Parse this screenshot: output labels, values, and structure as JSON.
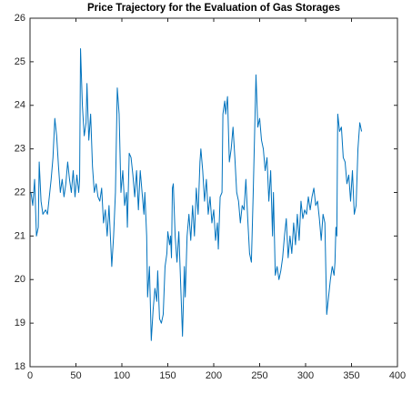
{
  "chart_data": {
    "type": "line",
    "title": "Price Trajectory for the Evaluation of Gas Storages",
    "x": [
      1,
      3,
      5,
      7,
      9,
      10,
      12,
      14,
      17,
      19,
      21,
      23,
      25,
      27,
      29,
      31,
      33,
      35,
      37,
      39,
      41,
      43,
      45,
      47,
      49,
      51,
      53,
      54,
      55,
      57,
      59,
      61,
      62,
      64,
      66,
      68,
      70,
      72,
      74,
      76,
      78,
      80,
      82,
      84,
      86,
      89,
      91,
      93,
      95,
      97,
      99,
      101,
      103,
      105,
      106,
      108,
      110,
      112,
      114,
      116,
      118,
      120,
      122,
      124,
      125,
      127,
      128,
      130,
      132,
      134,
      136,
      138,
      139,
      141,
      143,
      145,
      147,
      149,
      150,
      152,
      153,
      154,
      155,
      156,
      158,
      160,
      162,
      166,
      168,
      169,
      171,
      173,
      175,
      177,
      179,
      181,
      183,
      185,
      186,
      188,
      190,
      192,
      194,
      196,
      198,
      200,
      202,
      204,
      205,
      207,
      209,
      210,
      212,
      213,
      215,
      217,
      219,
      221,
      223,
      225,
      227,
      229,
      231,
      233,
      235,
      237,
      239,
      241,
      243,
      246,
      248,
      250,
      252,
      254,
      256,
      258,
      260,
      262,
      264,
      265,
      267,
      269,
      271,
      273,
      275,
      277,
      279,
      281,
      283,
      285,
      287,
      289,
      291,
      293,
      295,
      297,
      299,
      301,
      303,
      305,
      307,
      309,
      311,
      313,
      315,
      317,
      319,
      321,
      323,
      325,
      327,
      329,
      331,
      332,
      333,
      334,
      335,
      337,
      339,
      341,
      343,
      345,
      347,
      349,
      351,
      353,
      355,
      357,
      359,
      361
    ],
    "values": [
      22.0,
      21.7,
      22.3,
      21.0,
      21.2,
      22.7,
      21.8,
      21.5,
      21.6,
      21.5,
      21.9,
      22.3,
      22.8,
      23.7,
      23.3,
      22.6,
      22.0,
      22.3,
      21.9,
      22.2,
      22.7,
      22.3,
      22.0,
      22.5,
      21.9,
      22.4,
      22.0,
      22.3,
      25.3,
      24.0,
      23.3,
      23.6,
      24.5,
      23.2,
      23.8,
      22.6,
      22.0,
      22.2,
      21.9,
      21.8,
      22.1,
      21.3,
      21.6,
      21.0,
      21.7,
      20.3,
      21.0,
      22.0,
      24.4,
      23.8,
      22.0,
      22.5,
      21.7,
      22.0,
      21.2,
      22.9,
      22.8,
      22.4,
      21.9,
      22.5,
      21.6,
      22.5,
      22.0,
      21.5,
      22.0,
      21.0,
      19.6,
      20.3,
      18.6,
      19.3,
      19.8,
      19.5,
      20.2,
      19.1,
      19.0,
      19.2,
      20.3,
      20.6,
      21.1,
      20.8,
      21.0,
      20.5,
      22.1,
      22.2,
      21.0,
      20.4,
      21.1,
      18.7,
      20.3,
      19.6,
      21.0,
      21.5,
      20.9,
      21.7,
      21.0,
      22.1,
      21.5,
      22.7,
      23.0,
      22.5,
      21.8,
      22.3,
      21.5,
      21.9,
      21.3,
      21.6,
      20.9,
      21.3,
      20.7,
      21.9,
      22.0,
      23.8,
      24.1,
      23.8,
      24.2,
      22.7,
      23.0,
      23.5,
      22.8,
      22.0,
      21.8,
      21.3,
      21.7,
      21.6,
      22.3,
      21.4,
      20.6,
      20.4,
      22.0,
      24.7,
      23.5,
      23.7,
      23.2,
      23.0,
      22.5,
      22.8,
      21.8,
      22.5,
      21.0,
      22.0,
      20.1,
      20.3,
      20.0,
      20.2,
      20.5,
      21.0,
      21.4,
      20.5,
      21.0,
      20.6,
      21.3,
      20.8,
      21.5,
      20.9,
      21.8,
      21.4,
      21.6,
      21.5,
      21.9,
      21.6,
      21.9,
      22.1,
      21.7,
      21.8,
      21.4,
      20.9,
      21.5,
      21.3,
      19.2,
      19.6,
      20.0,
      20.3,
      20.1,
      20.4,
      21.2,
      21.0,
      23.8,
      23.4,
      23.5,
      22.8,
      22.7,
      22.2,
      22.4,
      21.8,
      22.5,
      21.5,
      21.7,
      23.0,
      23.6,
      23.4
    ],
    "color": "#0072bd",
    "xlim": [
      0,
      400
    ],
    "xticks": [
      0,
      50,
      100,
      150,
      200,
      250,
      300,
      350,
      400
    ],
    "ylim": [
      18,
      26
    ],
    "yticks": [
      18,
      19,
      20,
      21,
      22,
      23,
      24,
      25,
      26
    ]
  }
}
